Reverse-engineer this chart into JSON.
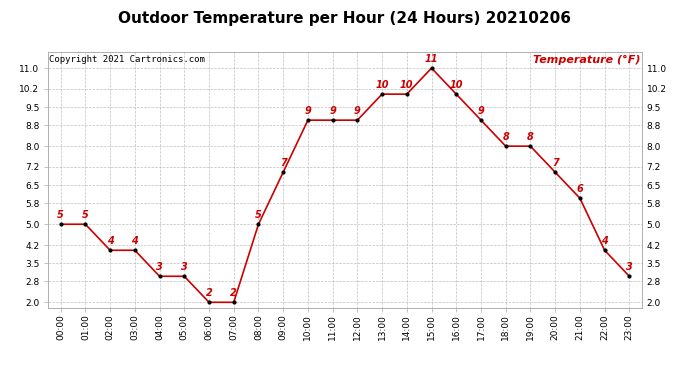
{
  "title": "Outdoor Temperature per Hour (24 Hours) 20210206",
  "copyright_text": "Copyright 2021 Cartronics.com",
  "legend_label": "Temperature (°F)",
  "hours": [
    "00:00",
    "01:00",
    "02:00",
    "03:00",
    "04:00",
    "05:00",
    "06:00",
    "07:00",
    "08:00",
    "09:00",
    "10:00",
    "11:00",
    "12:00",
    "13:00",
    "14:00",
    "15:00",
    "16:00",
    "17:00",
    "18:00",
    "19:00",
    "20:00",
    "21:00",
    "22:00",
    "23:00"
  ],
  "temperatures": [
    5,
    5,
    4,
    4,
    3,
    3,
    2,
    2,
    5,
    7,
    9,
    9,
    9,
    10,
    10,
    11,
    10,
    9,
    8,
    8,
    7,
    6,
    4,
    3
  ],
  "line_color": "#cc0000",
  "marker_color": "black",
  "background_color": "#ffffff",
  "grid_color": "#b0b0b0",
  "title_color": "#000000",
  "copyright_color": "#000000",
  "legend_color": "#cc0000",
  "label_color": "#cc0000",
  "ylim_min": 1.8,
  "ylim_max": 11.6,
  "yticks": [
    2.0,
    2.8,
    3.5,
    4.2,
    5.0,
    5.8,
    6.5,
    7.2,
    8.0,
    8.8,
    9.5,
    10.2,
    11.0
  ],
  "title_fontsize": 11,
  "label_fontsize": 7,
  "copyright_fontsize": 6.5,
  "legend_fontsize": 8,
  "tick_fontsize": 6.5
}
